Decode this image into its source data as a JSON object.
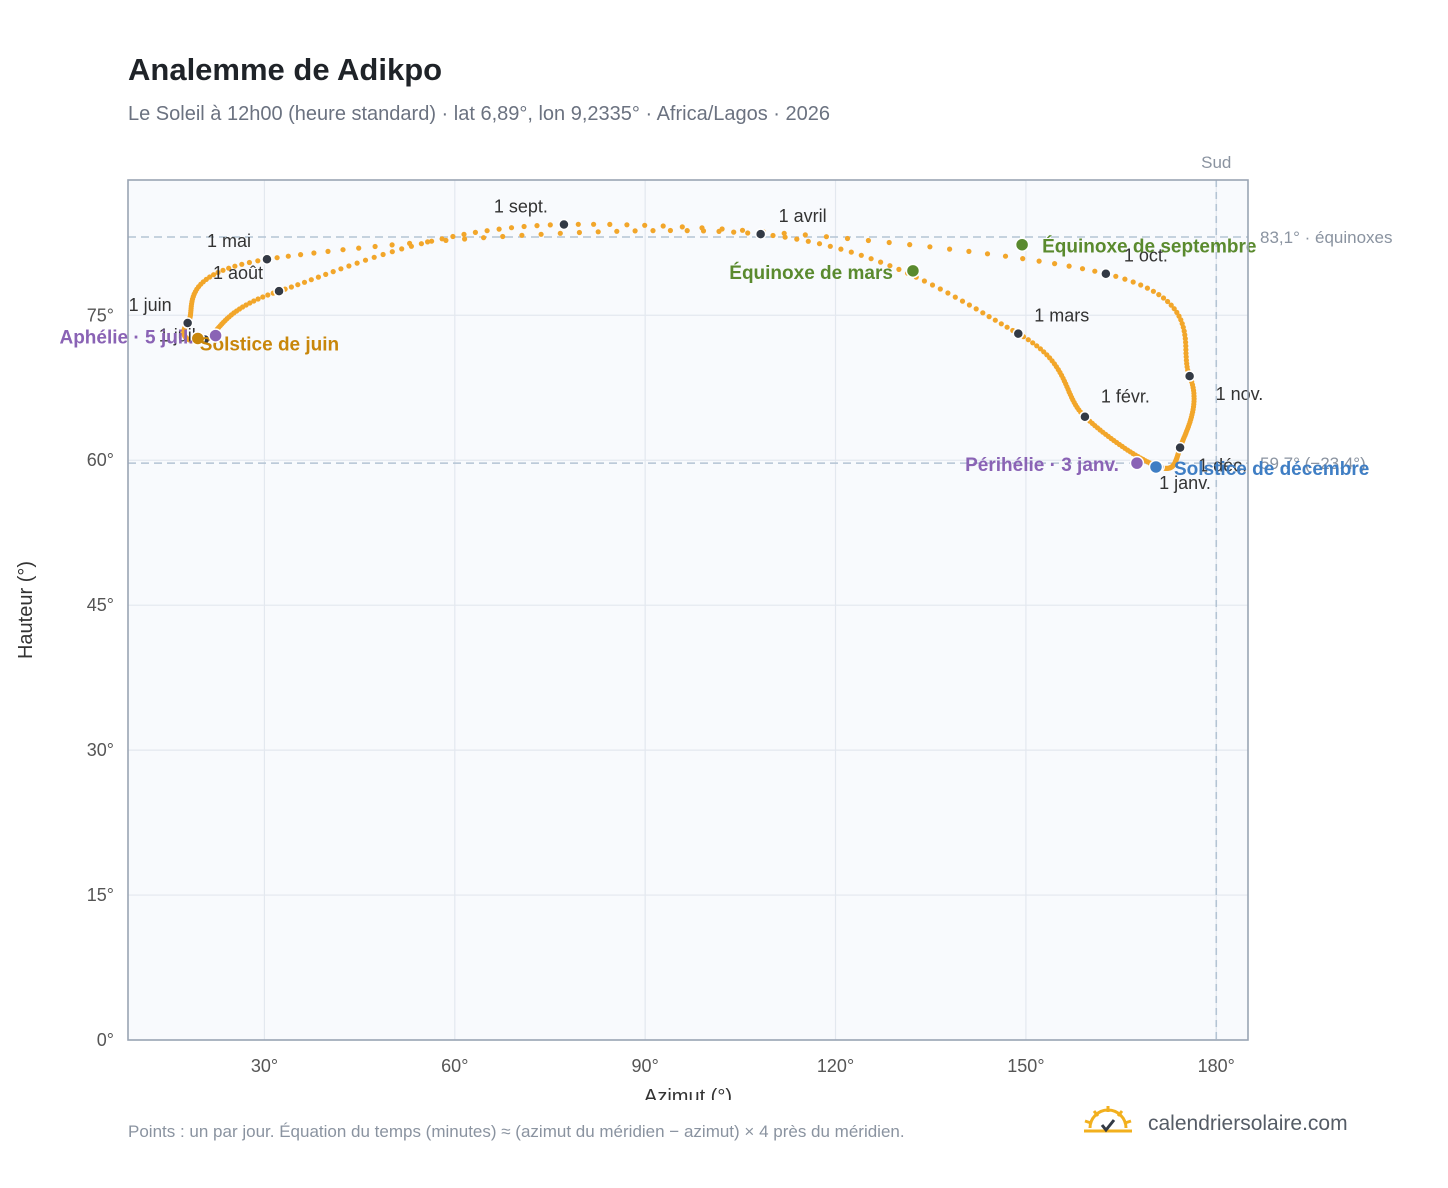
{
  "title": "Analemme de Adikpo",
  "subtitle": "Le Soleil à 12h00 (heure standard) · lat 6,89°, lon 9,2335° · Africa/Lagos · 2026",
  "footnote": "Points : un par jour. Équation du temps (minutes) ≈ (azimut du méridien − azimut) × 4 près du méridien.",
  "brand": {
    "name": "calendriersolaire.com",
    "icon": "sun-logo-icon"
  },
  "colors": {
    "curve": "#f2a62a",
    "month_dot": "#333a45",
    "equinox": "#5a8a2e",
    "solstice_june": "#c8860a",
    "solstice_dec": "#3f7ec4",
    "apsis": "#8a63b5",
    "plot_bg": "#f8fafd",
    "grid": "#e3e8ef",
    "ref_line": "#b4c4d4"
  },
  "chart_data": {
    "type": "scatter",
    "title": "Analemme de Adikpo",
    "xlabel": "Azimut (°)",
    "ylabel": "Hauteur (°)",
    "xlim": [
      8.5,
      185
    ],
    "ylim": [
      0,
      89
    ],
    "xticks": [
      "30°",
      "60°",
      "90°",
      "120°",
      "150°",
      "180°"
    ],
    "xtick_values": [
      30,
      60,
      90,
      120,
      150,
      180
    ],
    "yticks": [
      "0°",
      "15°",
      "30°",
      "45°",
      "60°",
      "75°"
    ],
    "ytick_values": [
      0,
      15,
      30,
      45,
      60,
      75
    ],
    "grid": true,
    "meridian": {
      "azimuth": 180,
      "label": "Sud"
    },
    "reference_lines": [
      {
        "altitude": 83.1,
        "label": "83,1° · équinoxes"
      },
      {
        "altitude": 59.7,
        "label": "59,7° (−23,4°)"
      }
    ],
    "month_points": [
      {
        "label": "1 janv.",
        "az": 171.0,
        "alt": 59.3
      },
      {
        "label": "1 févr.",
        "az": 159.3,
        "alt": 64.5
      },
      {
        "label": "1 mars",
        "az": 148.8,
        "alt": 73.1
      },
      {
        "label": "1 avril",
        "az": 108.2,
        "alt": 83.4
      },
      {
        "label": "1 mai",
        "az": 30.4,
        "alt": 80.8
      },
      {
        "label": "1 juin",
        "az": 17.9,
        "alt": 74.2
      },
      {
        "label": "1 juil.",
        "az": 20.6,
        "alt": 72.5
      },
      {
        "label": "1 août",
        "az": 32.3,
        "alt": 77.5
      },
      {
        "label": "1 sept.",
        "az": 77.2,
        "alt": 84.4
      },
      {
        "label": "1 oct.",
        "az": 162.6,
        "alt": 79.3
      },
      {
        "label": "1 nov.",
        "az": 175.8,
        "alt": 68.7
      },
      {
        "label": "1 déc.",
        "az": 174.3,
        "alt": 61.3
      }
    ],
    "events": [
      {
        "label": "Équinoxe de mars",
        "az": 132.2,
        "alt": 79.6,
        "kind": "equinox"
      },
      {
        "label": "Solstice de juin",
        "az": 19.5,
        "alt": 72.6,
        "kind": "solstice_june"
      },
      {
        "label": "Équinoxe de septembre",
        "az": 149.4,
        "alt": 82.3,
        "kind": "equinox"
      },
      {
        "label": "Solstice de décembre",
        "az": 170.5,
        "alt": 59.3,
        "kind": "solstice_dec"
      },
      {
        "label": "Périhélie · 3 janv.",
        "az": 167.5,
        "alt": 59.7,
        "kind": "apsis"
      },
      {
        "label": "Aphélie · 5 juil.",
        "az": 22.3,
        "alt": 72.9,
        "kind": "apsis"
      }
    ]
  }
}
